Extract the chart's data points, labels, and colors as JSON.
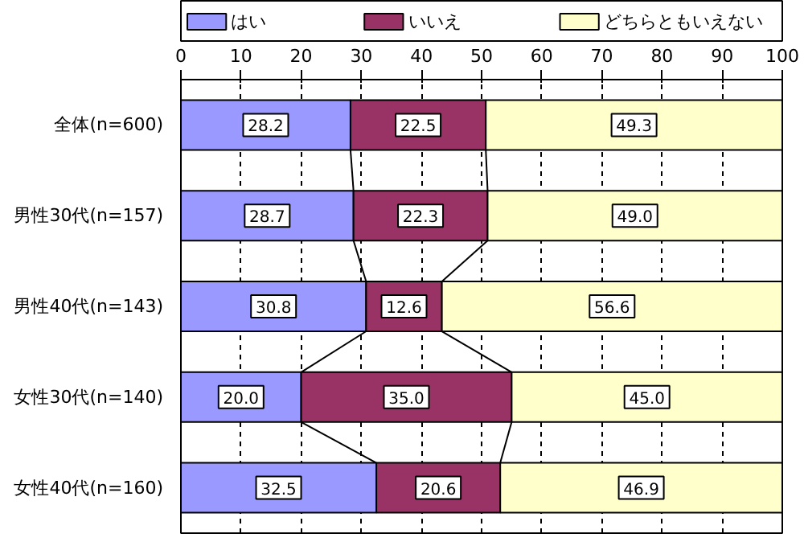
{
  "chart_data": {
    "type": "bar",
    "orientation": "horizontal",
    "stacked": true,
    "legend": "top",
    "grid": "x",
    "categories": [
      "全体(n=600)",
      "男性30代(n=157)",
      "男性40代(n=143)",
      "女性30代(n=140)",
      "女性40代(n=160)"
    ],
    "series": [
      {
        "name": "はい",
        "color": "#9999ff",
        "values": [
          28.2,
          28.7,
          30.8,
          20.0,
          32.5
        ],
        "value_labels": [
          "28.2",
          "28.7",
          "30.8",
          "20.0",
          "32.5"
        ]
      },
      {
        "name": "いいえ",
        "color": "#993366",
        "values": [
          22.5,
          22.3,
          12.6,
          35.0,
          20.6
        ],
        "value_labels": [
          "22.5",
          "22.3",
          "12.6",
          "35.0",
          "20.6"
        ]
      },
      {
        "name": "どちらともいえない",
        "color": "#ffffcc",
        "values": [
          49.3,
          49.0,
          56.6,
          45.0,
          46.9
        ],
        "value_labels": [
          "49.3",
          "49.0",
          "56.6",
          "45.0",
          "46.9"
        ]
      }
    ],
    "xlim": [
      0,
      100
    ],
    "xticks": [
      0,
      10,
      20,
      30,
      40,
      50,
      60,
      70,
      80,
      90,
      100
    ]
  }
}
